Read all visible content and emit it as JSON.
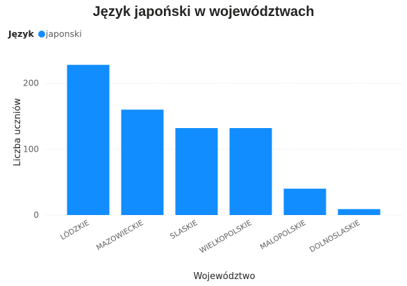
{
  "chart_data": {
    "type": "bar",
    "title": "Język japoński w województwach",
    "legend": {
      "title": "Język",
      "position": "top-left",
      "entries": [
        "japonski"
      ]
    },
    "xlabel": "Województwo",
    "ylabel": "Liczba uczniów",
    "categories": [
      "LÓDZKIE",
      "MAZOWIECKIE",
      "SLASKIE",
      "WIELKOPOLSKIE",
      "MALOPOLSKIE",
      "DOLNOSLASKIE"
    ],
    "series": [
      {
        "name": "japonski",
        "color": "#118DFF",
        "values": [
          228,
          160,
          132,
          132,
          40,
          9
        ]
      }
    ],
    "yticks": [
      0,
      100,
      200
    ],
    "ylim": [
      0,
      245
    ],
    "grid": "horizontal-dotted"
  }
}
